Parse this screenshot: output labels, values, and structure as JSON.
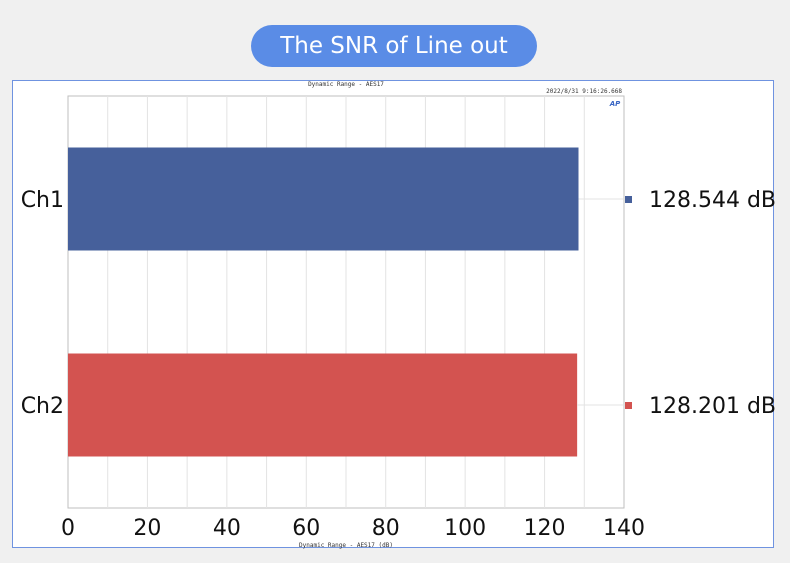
{
  "header": {
    "title": "The SNR of Line out"
  },
  "chart_data": {
    "type": "bar",
    "orientation": "horizontal",
    "title": "Dynamic Range - AES17",
    "timestamp": "2022/8/31 9:16:26.668",
    "logo": "AP",
    "xlabel": "Dynamic Range - AES17 (dB)",
    "xlim": [
      0,
      140
    ],
    "xticks": [
      "0",
      "20",
      "40",
      "60",
      "80",
      "100",
      "120",
      "140"
    ],
    "grid": true,
    "categories": [
      "Ch1",
      "Ch2"
    ],
    "values": [
      128.544,
      128.201
    ],
    "colors": [
      "#46609b",
      "#d35350"
    ],
    "legend": [
      {
        "label": "128.544 dB",
        "color": "#46609b"
      },
      {
        "label": "128.201 dB",
        "color": "#d35350"
      }
    ]
  }
}
